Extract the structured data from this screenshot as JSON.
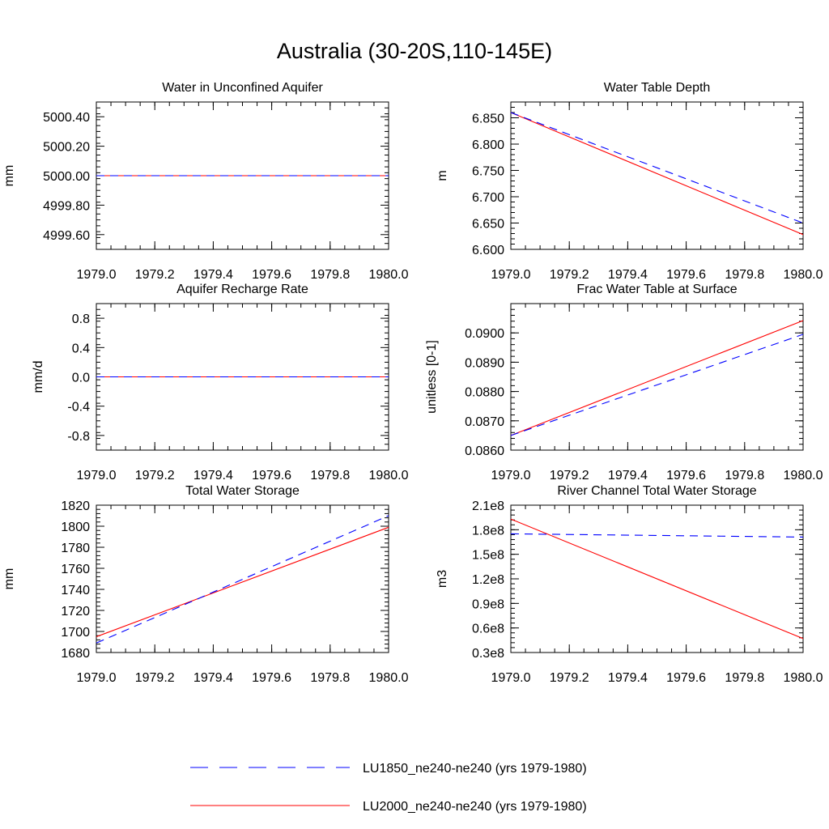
{
  "figure_title": "Australia (30-20S,110-145E)",
  "chart_data": [
    {
      "type": "line",
      "title": "Water in Unconfined Aquifer",
      "xlabel": "",
      "ylabel": "mm",
      "xlim": [
        1979.0,
        1980.0
      ],
      "ylim": [
        4999.5,
        5000.5
      ],
      "xticks": [
        1979.0,
        1979.2,
        1979.4,
        1979.6,
        1979.8,
        1980.0
      ],
      "xtick_labels": [
        "1979.0",
        "1979.2",
        "1979.4",
        "1979.6",
        "1979.8",
        "1980.0"
      ],
      "yticks": [
        4999.6,
        4999.8,
        5000.0,
        5000.2,
        5000.4
      ],
      "ytick_labels": [
        "4999.60",
        "4999.80",
        "5000.00",
        "5000.20",
        "5000.40"
      ],
      "series": [
        {
          "name": "LU1850_ne240-ne240 (yrs 1979-1980)",
          "x": [
            1979.0,
            1980.0
          ],
          "y": [
            5000.0,
            5000.0
          ]
        },
        {
          "name": "LU2000_ne240-ne240 (yrs 1979-1980)",
          "x": [
            1979.0,
            1980.0
          ],
          "y": [
            5000.0,
            5000.0
          ]
        }
      ]
    },
    {
      "type": "line",
      "title": "Water Table Depth",
      "xlabel": "",
      "ylabel": "m",
      "xlim": [
        1979.0,
        1980.0
      ],
      "ylim": [
        6.6,
        6.88
      ],
      "xticks": [
        1979.0,
        1979.2,
        1979.4,
        1979.6,
        1979.8,
        1980.0
      ],
      "xtick_labels": [
        "1979.0",
        "1979.2",
        "1979.4",
        "1979.6",
        "1979.8",
        "1980.0"
      ],
      "yticks": [
        6.6,
        6.65,
        6.7,
        6.75,
        6.8,
        6.85
      ],
      "ytick_labels": [
        "6.600",
        "6.650",
        "6.700",
        "6.750",
        "6.800",
        "6.850"
      ],
      "series": [
        {
          "name": "LU1850_ne240-ne240 (yrs 1979-1980)",
          "x": [
            1979.0,
            1980.0
          ],
          "y": [
            6.86,
            6.65
          ]
        },
        {
          "name": "LU2000_ne240-ne240 (yrs 1979-1980)",
          "x": [
            1979.0,
            1980.0
          ],
          "y": [
            6.86,
            6.628
          ]
        }
      ]
    },
    {
      "type": "line",
      "title": "Aquifer Recharge Rate",
      "xlabel": "",
      "ylabel": "mm/d",
      "xlim": [
        1979.0,
        1980.0
      ],
      "ylim": [
        -1.0,
        1.0
      ],
      "xticks": [
        1979.0,
        1979.2,
        1979.4,
        1979.6,
        1979.8,
        1980.0
      ],
      "xtick_labels": [
        "1979.0",
        "1979.2",
        "1979.4",
        "1979.6",
        "1979.8",
        "1980.0"
      ],
      "yticks": [
        -0.8,
        -0.4,
        0.0,
        0.4,
        0.8
      ],
      "ytick_labels": [
        "-0.8",
        "-0.4",
        "0.0",
        "0.4",
        "0.8"
      ],
      "series": [
        {
          "name": "LU1850_ne240-ne240 (yrs 1979-1980)",
          "x": [
            1979.0,
            1980.0
          ],
          "y": [
            0.0,
            0.0
          ]
        },
        {
          "name": "LU2000_ne240-ne240 (yrs 1979-1980)",
          "x": [
            1979.0,
            1980.0
          ],
          "y": [
            0.0,
            0.0
          ]
        }
      ]
    },
    {
      "type": "line",
      "title": "Frac Water Table at Surface",
      "xlabel": "",
      "ylabel": "unitless [0-1]",
      "xlim": [
        1979.0,
        1980.0
      ],
      "ylim": [
        0.086,
        0.091
      ],
      "xticks": [
        1979.0,
        1979.2,
        1979.4,
        1979.6,
        1979.8,
        1980.0
      ],
      "xtick_labels": [
        "1979.0",
        "1979.2",
        "1979.4",
        "1979.6",
        "1979.8",
        "1980.0"
      ],
      "yticks": [
        0.086,
        0.087,
        0.088,
        0.089,
        0.09
      ],
      "ytick_labels": [
        "0.0860",
        "0.0870",
        "0.0880",
        "0.0890",
        "0.0900"
      ],
      "series": [
        {
          "name": "LU1850_ne240-ne240 (yrs 1979-1980)",
          "x": [
            1979.0,
            1980.0
          ],
          "y": [
            0.0865,
            0.08995
          ]
        },
        {
          "name": "LU2000_ne240-ne240 (yrs 1979-1980)",
          "x": [
            1979.0,
            1980.0
          ],
          "y": [
            0.0865,
            0.09042
          ]
        }
      ]
    },
    {
      "type": "line",
      "title": "Total Water Storage",
      "xlabel": "",
      "ylabel": "mm",
      "xlim": [
        1979.0,
        1980.0
      ],
      "ylim": [
        1680,
        1820
      ],
      "xticks": [
        1979.0,
        1979.2,
        1979.4,
        1979.6,
        1979.8,
        1980.0
      ],
      "xtick_labels": [
        "1979.0",
        "1979.2",
        "1979.4",
        "1979.6",
        "1979.8",
        "1980.0"
      ],
      "yticks": [
        1680,
        1700,
        1720,
        1740,
        1760,
        1780,
        1800,
        1820
      ],
      "ytick_labels": [
        "1680",
        "1700",
        "1720",
        "1740",
        "1760",
        "1780",
        "1800",
        "1820"
      ],
      "series": [
        {
          "name": "LU1850_ne240-ne240 (yrs 1979-1980)",
          "x": [
            1979.0,
            1980.0
          ],
          "y": [
            1689,
            1810
          ]
        },
        {
          "name": "LU2000_ne240-ne240 (yrs 1979-1980)",
          "x": [
            1979.0,
            1980.0
          ],
          "y": [
            1695,
            1799
          ]
        }
      ]
    },
    {
      "type": "line",
      "title": "River Channel Total Water Storage",
      "xlabel": "",
      "ylabel": "m3",
      "xlim": [
        1979.0,
        1980.0
      ],
      "ylim": [
        30000000,
        210000000
      ],
      "xticks": [
        1979.0,
        1979.2,
        1979.4,
        1979.6,
        1979.8,
        1980.0
      ],
      "xtick_labels": [
        "1979.0",
        "1979.2",
        "1979.4",
        "1979.6",
        "1979.8",
        "1980.0"
      ],
      "yticks": [
        30000000,
        60000000,
        90000000,
        120000000,
        150000000,
        180000000,
        210000000
      ],
      "ytick_labels": [
        "0.3e8",
        "0.6e8",
        "0.9e8",
        "1.2e8",
        "1.5e8",
        "1.8e8",
        "2.1e8"
      ],
      "series": [
        {
          "name": "LU1850_ne240-ne240 (yrs 1979-1980)",
          "x": [
            1979.0,
            1980.0
          ],
          "y": [
            175000000,
            171000000
          ]
        },
        {
          "name": "LU2000_ne240-ne240 (yrs 1979-1980)",
          "x": [
            1979.0,
            1980.0
          ],
          "y": [
            193000000,
            47000000
          ]
        }
      ]
    }
  ],
  "legend": [
    {
      "label": "LU1850_ne240-ne240 (yrs 1979-1980)",
      "color": "#0000ff",
      "dash": "dashed"
    },
    {
      "label": "LU2000_ne240-ne240 (yrs 1979-1980)",
      "color": "#ff0000",
      "dash": "solid"
    }
  ],
  "colors": {
    "series1": "#0000ff",
    "series2": "#ff0000",
    "axes": "#000000"
  }
}
